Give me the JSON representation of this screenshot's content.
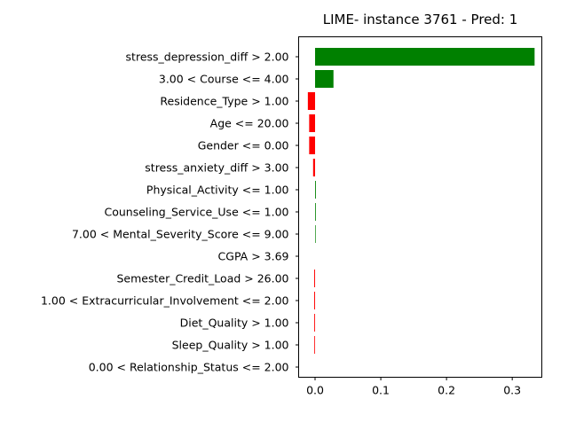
{
  "chart_data": {
    "type": "bar",
    "orientation": "horizontal",
    "title": "LIME- instance 3761 - Pred: 1",
    "xlabel": "",
    "ylabel": "",
    "xlim": [
      -0.025,
      0.345
    ],
    "xticks": [
      0.0,
      0.1,
      0.2,
      0.3
    ],
    "xtick_labels": [
      "0.0",
      "0.1",
      "0.2",
      "0.3"
    ],
    "grid": false,
    "colors": {
      "positive": "#008000",
      "negative": "#ff0000"
    },
    "categories": [
      "stress_depression_diff > 2.00",
      "3.00 < Course <= 4.00",
      "Residence_Type > 1.00",
      "Age <= 20.00",
      "Gender <= 0.00",
      "stress_anxiety_diff > 3.00",
      "Physical_Activity <= 1.00",
      "Counseling_Service_Use <= 1.00",
      "7.00 < Mental_Severity_Score <= 9.00",
      "CGPA > 3.69",
      "Semester_Credit_Load > 26.00",
      "1.00 < Extracurricular_Involvement <= 2.00",
      "Diet_Quality > 1.00",
      "Sleep_Quality > 1.00",
      "0.00 < Relationship_Status <= 2.00"
    ],
    "values": [
      0.334,
      0.028,
      -0.011,
      -0.009,
      -0.009,
      -0.003,
      0.0012,
      0.0011,
      0.0009,
      0.0,
      -0.0013,
      -0.0013,
      -0.0012,
      -0.0011,
      0.0
    ]
  }
}
